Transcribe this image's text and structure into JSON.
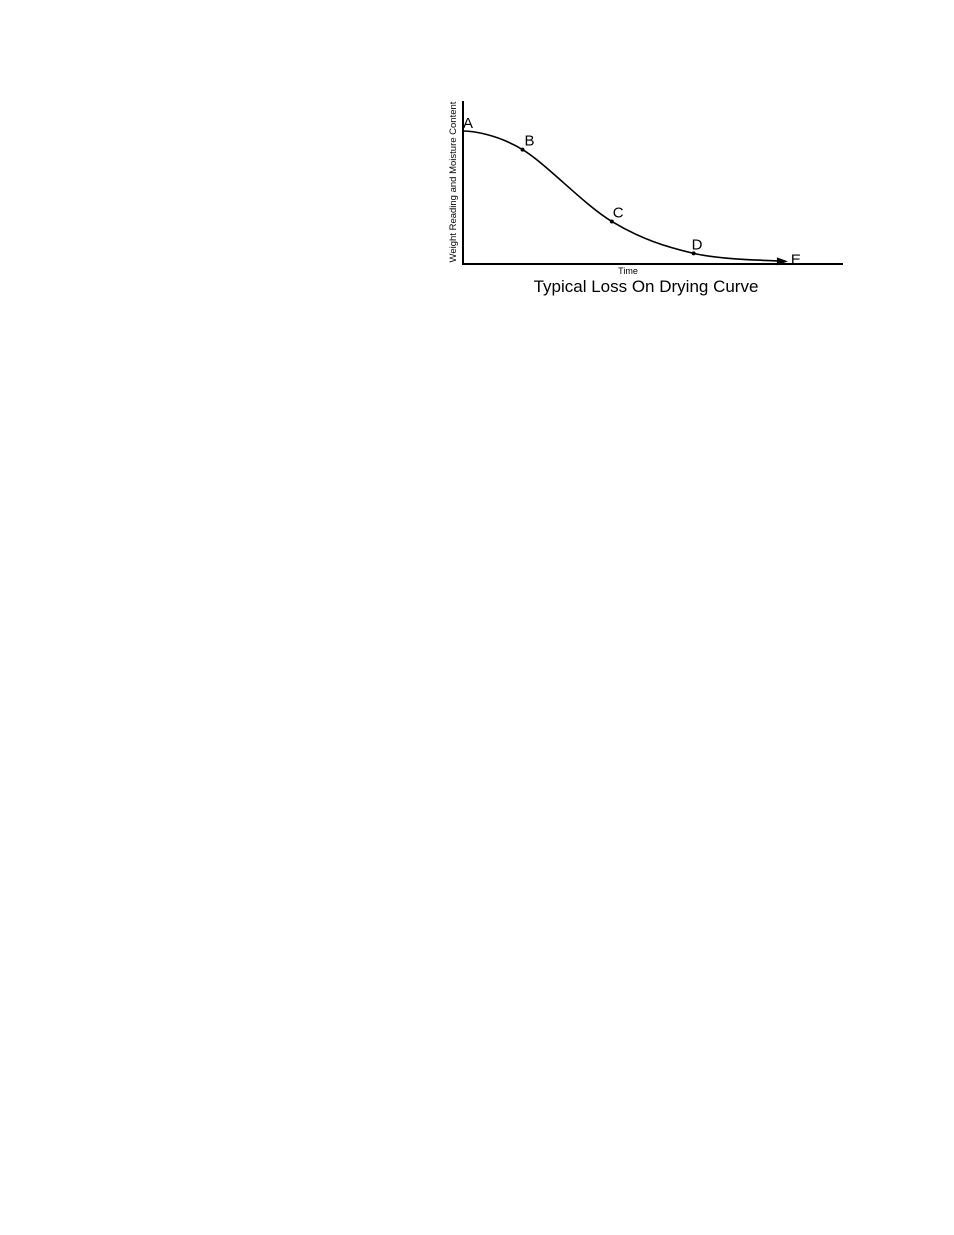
{
  "chart_data": {
    "type": "line",
    "title": "Typical Loss On Drying Curve",
    "xlabel": "Time",
    "ylabel": "Weight Reading and Moisture Content",
    "grid": false,
    "axis_ticks": false,
    "series": [
      {
        "values_description_free": true,
        "points": [
          {
            "label": "A",
            "x": 0.0,
            "y": 1.0
          },
          {
            "label": "B",
            "x": 0.16,
            "y": 0.86
          },
          {
            "label": "C",
            "x": 0.4,
            "y": 0.32
          },
          {
            "label": "D",
            "x": 0.62,
            "y": 0.08
          },
          {
            "label": "E",
            "x": 0.86,
            "y": 0.02
          }
        ]
      }
    ],
    "xlim": [
      0,
      1
    ],
    "ylim": [
      0,
      1.2
    ],
    "colors": {
      "line": "#000000",
      "background": "#ffffff"
    }
  }
}
